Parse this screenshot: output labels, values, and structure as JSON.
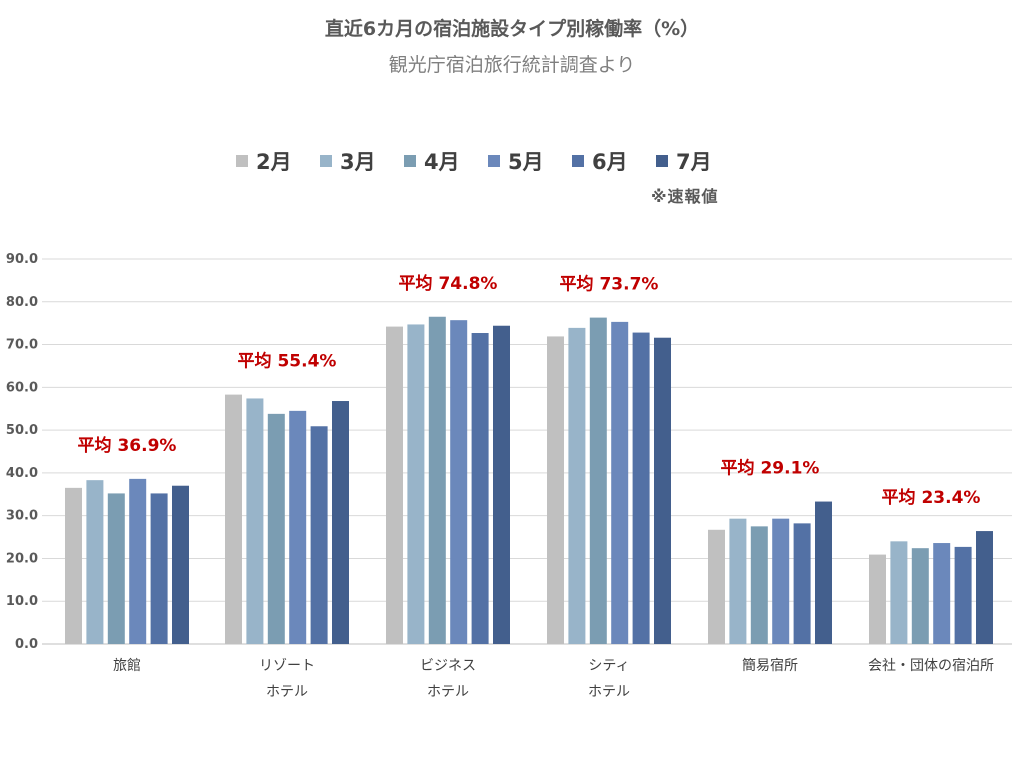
{
  "title": "直近6カ月の宿泊施設タイプ別稼働率（%）",
  "subtitle": "観光庁宿泊旅行統計調査より",
  "note": "※速報値",
  "chart_data": {
    "type": "bar",
    "title": "直近6カ月の宿泊施設タイプ別稼働率（%）",
    "subtitle": "観光庁宿泊旅行統計調査より",
    "categories": [
      [
        "旅館"
      ],
      [
        "リゾート",
        "ホテル"
      ],
      [
        "ビジネス",
        "ホテル"
      ],
      [
        "シティ",
        "ホテル"
      ],
      [
        "簡易宿所"
      ],
      [
        "会社・団体の宿泊所"
      ]
    ],
    "series": [
      {
        "name": "2月",
        "color": "#c0c0c0",
        "values": [
          36.5,
          58.3,
          74.2,
          71.9,
          26.7,
          20.9
        ]
      },
      {
        "name": "3月",
        "color": "#98b4c9",
        "values": [
          38.3,
          57.4,
          74.7,
          73.9,
          29.3,
          24.0
        ]
      },
      {
        "name": "4月",
        "color": "#7b9db2",
        "values": [
          35.2,
          53.8,
          76.5,
          76.3,
          27.5,
          22.4
        ]
      },
      {
        "name": "5月",
        "color": "#6b88bb",
        "values": [
          38.6,
          54.5,
          75.7,
          75.3,
          29.3,
          23.6
        ]
      },
      {
        "name": "6月",
        "color": "#5371a5",
        "values": [
          35.2,
          50.9,
          72.7,
          72.8,
          28.2,
          22.7
        ]
      },
      {
        "name": "7月",
        "color": "#435f8d",
        "values": [
          37.0,
          56.8,
          74.4,
          71.6,
          33.3,
          26.4
        ]
      }
    ],
    "averages": [
      "平均 36.9%",
      "平均 55.4%",
      "平均 74.8%",
      "平均 73.7%",
      "平均 29.1%",
      "平均 23.4%"
    ],
    "ylim": [
      0,
      90
    ],
    "yticks": [
      "0.0",
      "10.0",
      "20.0",
      "30.0",
      "40.0",
      "50.0",
      "60.0",
      "70.0",
      "80.0",
      "90.0"
    ],
    "grid": true,
    "legend": "top"
  }
}
